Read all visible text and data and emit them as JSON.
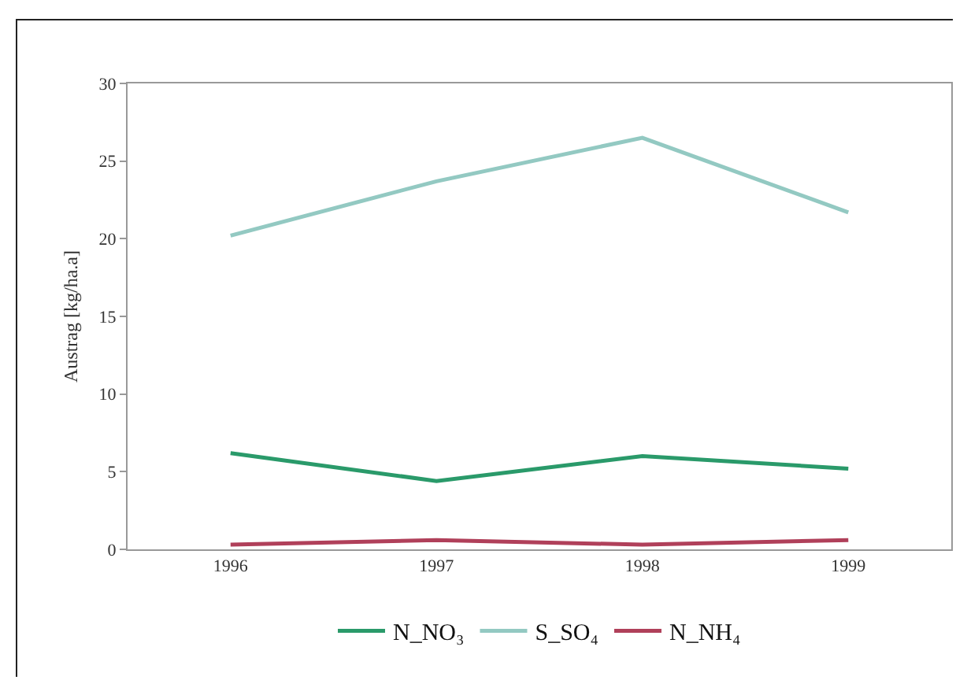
{
  "chart_data": {
    "type": "line",
    "ylabel": "Austrag [kg/ha.a]",
    "categories": [
      "1996",
      "1997",
      "1998",
      "1999"
    ],
    "series": [
      {
        "name": "N_NO₃",
        "color": "#2a9a6a",
        "values": [
          6.2,
          4.4,
          6.0,
          5.2
        ]
      },
      {
        "name": "S_SO₄",
        "color": "#93c9c2",
        "values": [
          20.2,
          23.7,
          26.5,
          21.7
        ]
      },
      {
        "name": "N_NH₄",
        "color": "#b0405a",
        "values": [
          0.3,
          0.6,
          0.3,
          0.6
        ]
      }
    ],
    "ylim": [
      0,
      30
    ],
    "yticks": [
      0,
      5,
      10,
      15,
      20,
      25,
      30
    ],
    "grid": false,
    "legend": "bottom",
    "marker": "none",
    "line_style": "solid"
  }
}
